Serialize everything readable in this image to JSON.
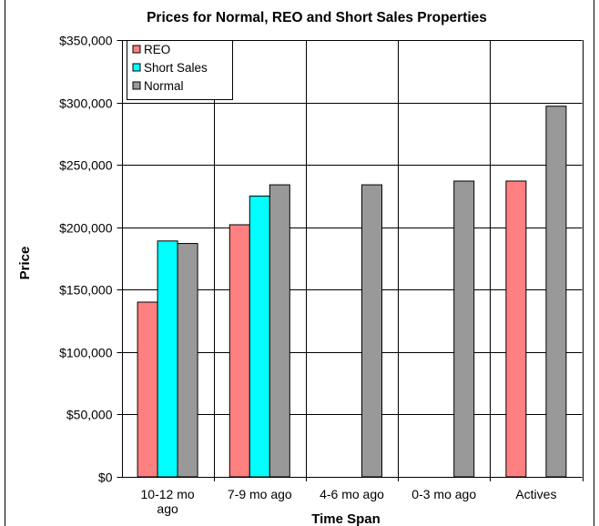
{
  "chart_data": {
    "type": "bar",
    "title": "Prices for Normal, REO and Short  Sales Properties",
    "xlabel": "Time Span",
    "ylabel": "Price",
    "categories": [
      [
        "10-12 mo",
        "ago"
      ],
      [
        "7-9 mo ago"
      ],
      [
        "4-6 mo ago"
      ],
      [
        "0-3 mo ago"
      ],
      [
        "Actives"
      ]
    ],
    "series": [
      {
        "name": "REO",
        "color": "#ff8080",
        "values": [
          140000,
          202000,
          null,
          null,
          237000
        ]
      },
      {
        "name": "Short Sales",
        "color": "#00ffff",
        "values": [
          189000,
          225000,
          null,
          null,
          null
        ]
      },
      {
        "name": "Normal",
        "color": "#999999",
        "values": [
          187000,
          234000,
          234000,
          237000,
          297000
        ]
      }
    ],
    "ylim": [
      0,
      350000
    ],
    "yticks": [
      "$0",
      "$50,000",
      "$100,000",
      "$150,000",
      "$200,000",
      "$250,000",
      "$300,000",
      "$350,000"
    ],
    "grid": "horizontal-and-category",
    "legend": "top-left"
  }
}
